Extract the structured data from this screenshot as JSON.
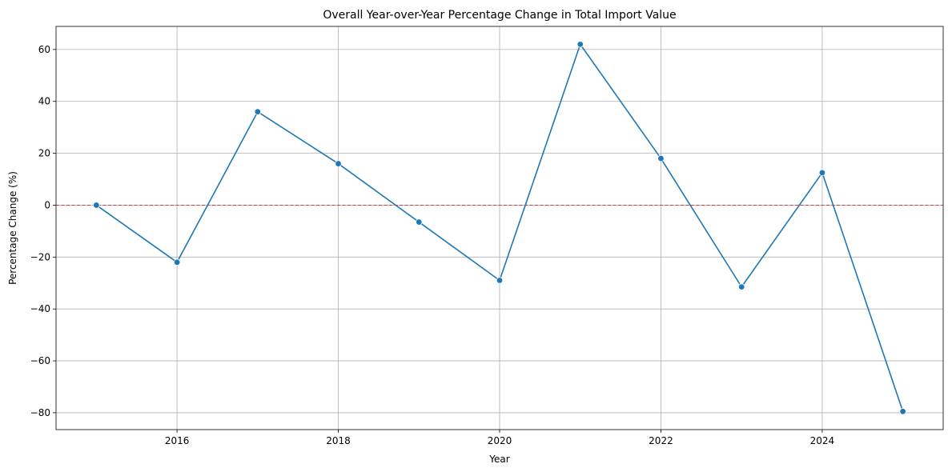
{
  "chart_data": {
    "type": "line",
    "title": "Overall Year-over-Year Percentage Change in Total Import Value",
    "xlabel": "Year",
    "ylabel": "Percentage Change (%)",
    "xlim": [
      2014.5,
      2025.5
    ],
    "ylim": [
      -86.5,
      68.9
    ],
    "xticks": [
      2016,
      2018,
      2020,
      2022,
      2024
    ],
    "xtick_labels": [
      "2016",
      "2018",
      "2020",
      "2022",
      "2024"
    ],
    "yticks": [
      -80,
      -60,
      -40,
      -20,
      0,
      20,
      40,
      60
    ],
    "ytick_labels": [
      "−80",
      "−60",
      "−40",
      "−20",
      "0",
      "20",
      "40",
      "60"
    ],
    "grid": true,
    "reference_line": {
      "y": 0,
      "color": "#d62728",
      "style": "dashed"
    },
    "series": [
      {
        "color": "#1f77b4",
        "x": [
          2015,
          2016,
          2017,
          2018,
          2019,
          2020,
          2021,
          2022,
          2023,
          2024,
          2025
        ],
        "y": [
          0,
          -22,
          36,
          16,
          -6.5,
          -29,
          62,
          18,
          -31.5,
          12.5,
          -79.5
        ]
      }
    ]
  }
}
